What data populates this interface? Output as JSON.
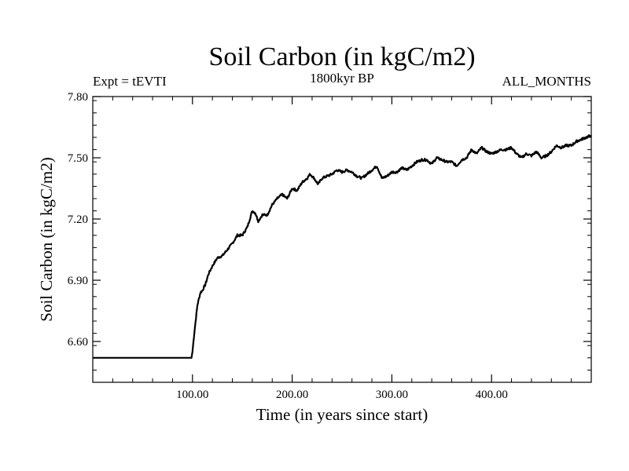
{
  "chart_data": {
    "type": "line",
    "title": "Soil Carbon (in kgC/m2)",
    "subtitle_left": "Expt = tEVTI",
    "subtitle_center": "1800kyr BP",
    "subtitle_right": "ALL_MONTHS",
    "xlabel": "Time (in years since start)",
    "ylabel": "Soil Carbon (in kgC/m2)",
    "xlim": [
      0,
      500
    ],
    "ylim": [
      6.4,
      7.8
    ],
    "xticks": [
      100,
      200,
      300,
      400
    ],
    "xtick_labels": [
      "100.00",
      "200.00",
      "300.00",
      "400.00"
    ],
    "yticks": [
      6.6,
      6.9,
      7.2,
      7.5,
      7.8
    ],
    "ytick_labels": [
      "6.60",
      "6.90",
      "7.20",
      "7.50",
      "7.80"
    ],
    "grid": false,
    "series": [
      {
        "name": "Soil Carbon",
        "x": [
          0,
          20,
          40,
          60,
          80,
          99,
          100,
          102,
          105,
          108,
          110,
          113,
          116,
          120,
          125,
          130,
          135,
          140,
          145,
          150,
          155,
          160,
          163,
          166,
          170,
          175,
          180,
          185,
          190,
          195,
          200,
          205,
          210,
          215,
          218,
          222,
          226,
          230,
          235,
          240,
          245,
          250,
          255,
          260,
          265,
          270,
          275,
          280,
          285,
          290,
          295,
          300,
          305,
          310,
          315,
          320,
          325,
          330,
          335,
          340,
          345,
          350,
          355,
          360,
          365,
          370,
          375,
          380,
          385,
          390,
          395,
          400,
          405,
          410,
          415,
          420,
          425,
          430,
          435,
          440,
          445,
          450,
          455,
          460,
          465,
          470,
          475,
          480,
          485,
          490,
          495,
          500
        ],
        "values": [
          6.52,
          6.52,
          6.52,
          6.52,
          6.52,
          6.52,
          6.55,
          6.65,
          6.78,
          6.84,
          6.85,
          6.88,
          6.93,
          6.97,
          7.01,
          7.02,
          7.05,
          7.08,
          7.12,
          7.12,
          7.16,
          7.24,
          7.23,
          7.19,
          7.22,
          7.22,
          7.27,
          7.3,
          7.32,
          7.3,
          7.35,
          7.34,
          7.38,
          7.4,
          7.42,
          7.4,
          7.37,
          7.4,
          7.41,
          7.42,
          7.44,
          7.43,
          7.44,
          7.43,
          7.41,
          7.4,
          7.42,
          7.44,
          7.46,
          7.4,
          7.41,
          7.43,
          7.43,
          7.45,
          7.44,
          7.46,
          7.48,
          7.49,
          7.49,
          7.47,
          7.5,
          7.49,
          7.48,
          7.48,
          7.46,
          7.49,
          7.5,
          7.54,
          7.52,
          7.55,
          7.53,
          7.52,
          7.53,
          7.54,
          7.54,
          7.55,
          7.52,
          7.5,
          7.52,
          7.51,
          7.53,
          7.5,
          7.51,
          7.53,
          7.56,
          7.55,
          7.56,
          7.56,
          7.58,
          7.59,
          7.6,
          7.61
        ]
      }
    ]
  }
}
